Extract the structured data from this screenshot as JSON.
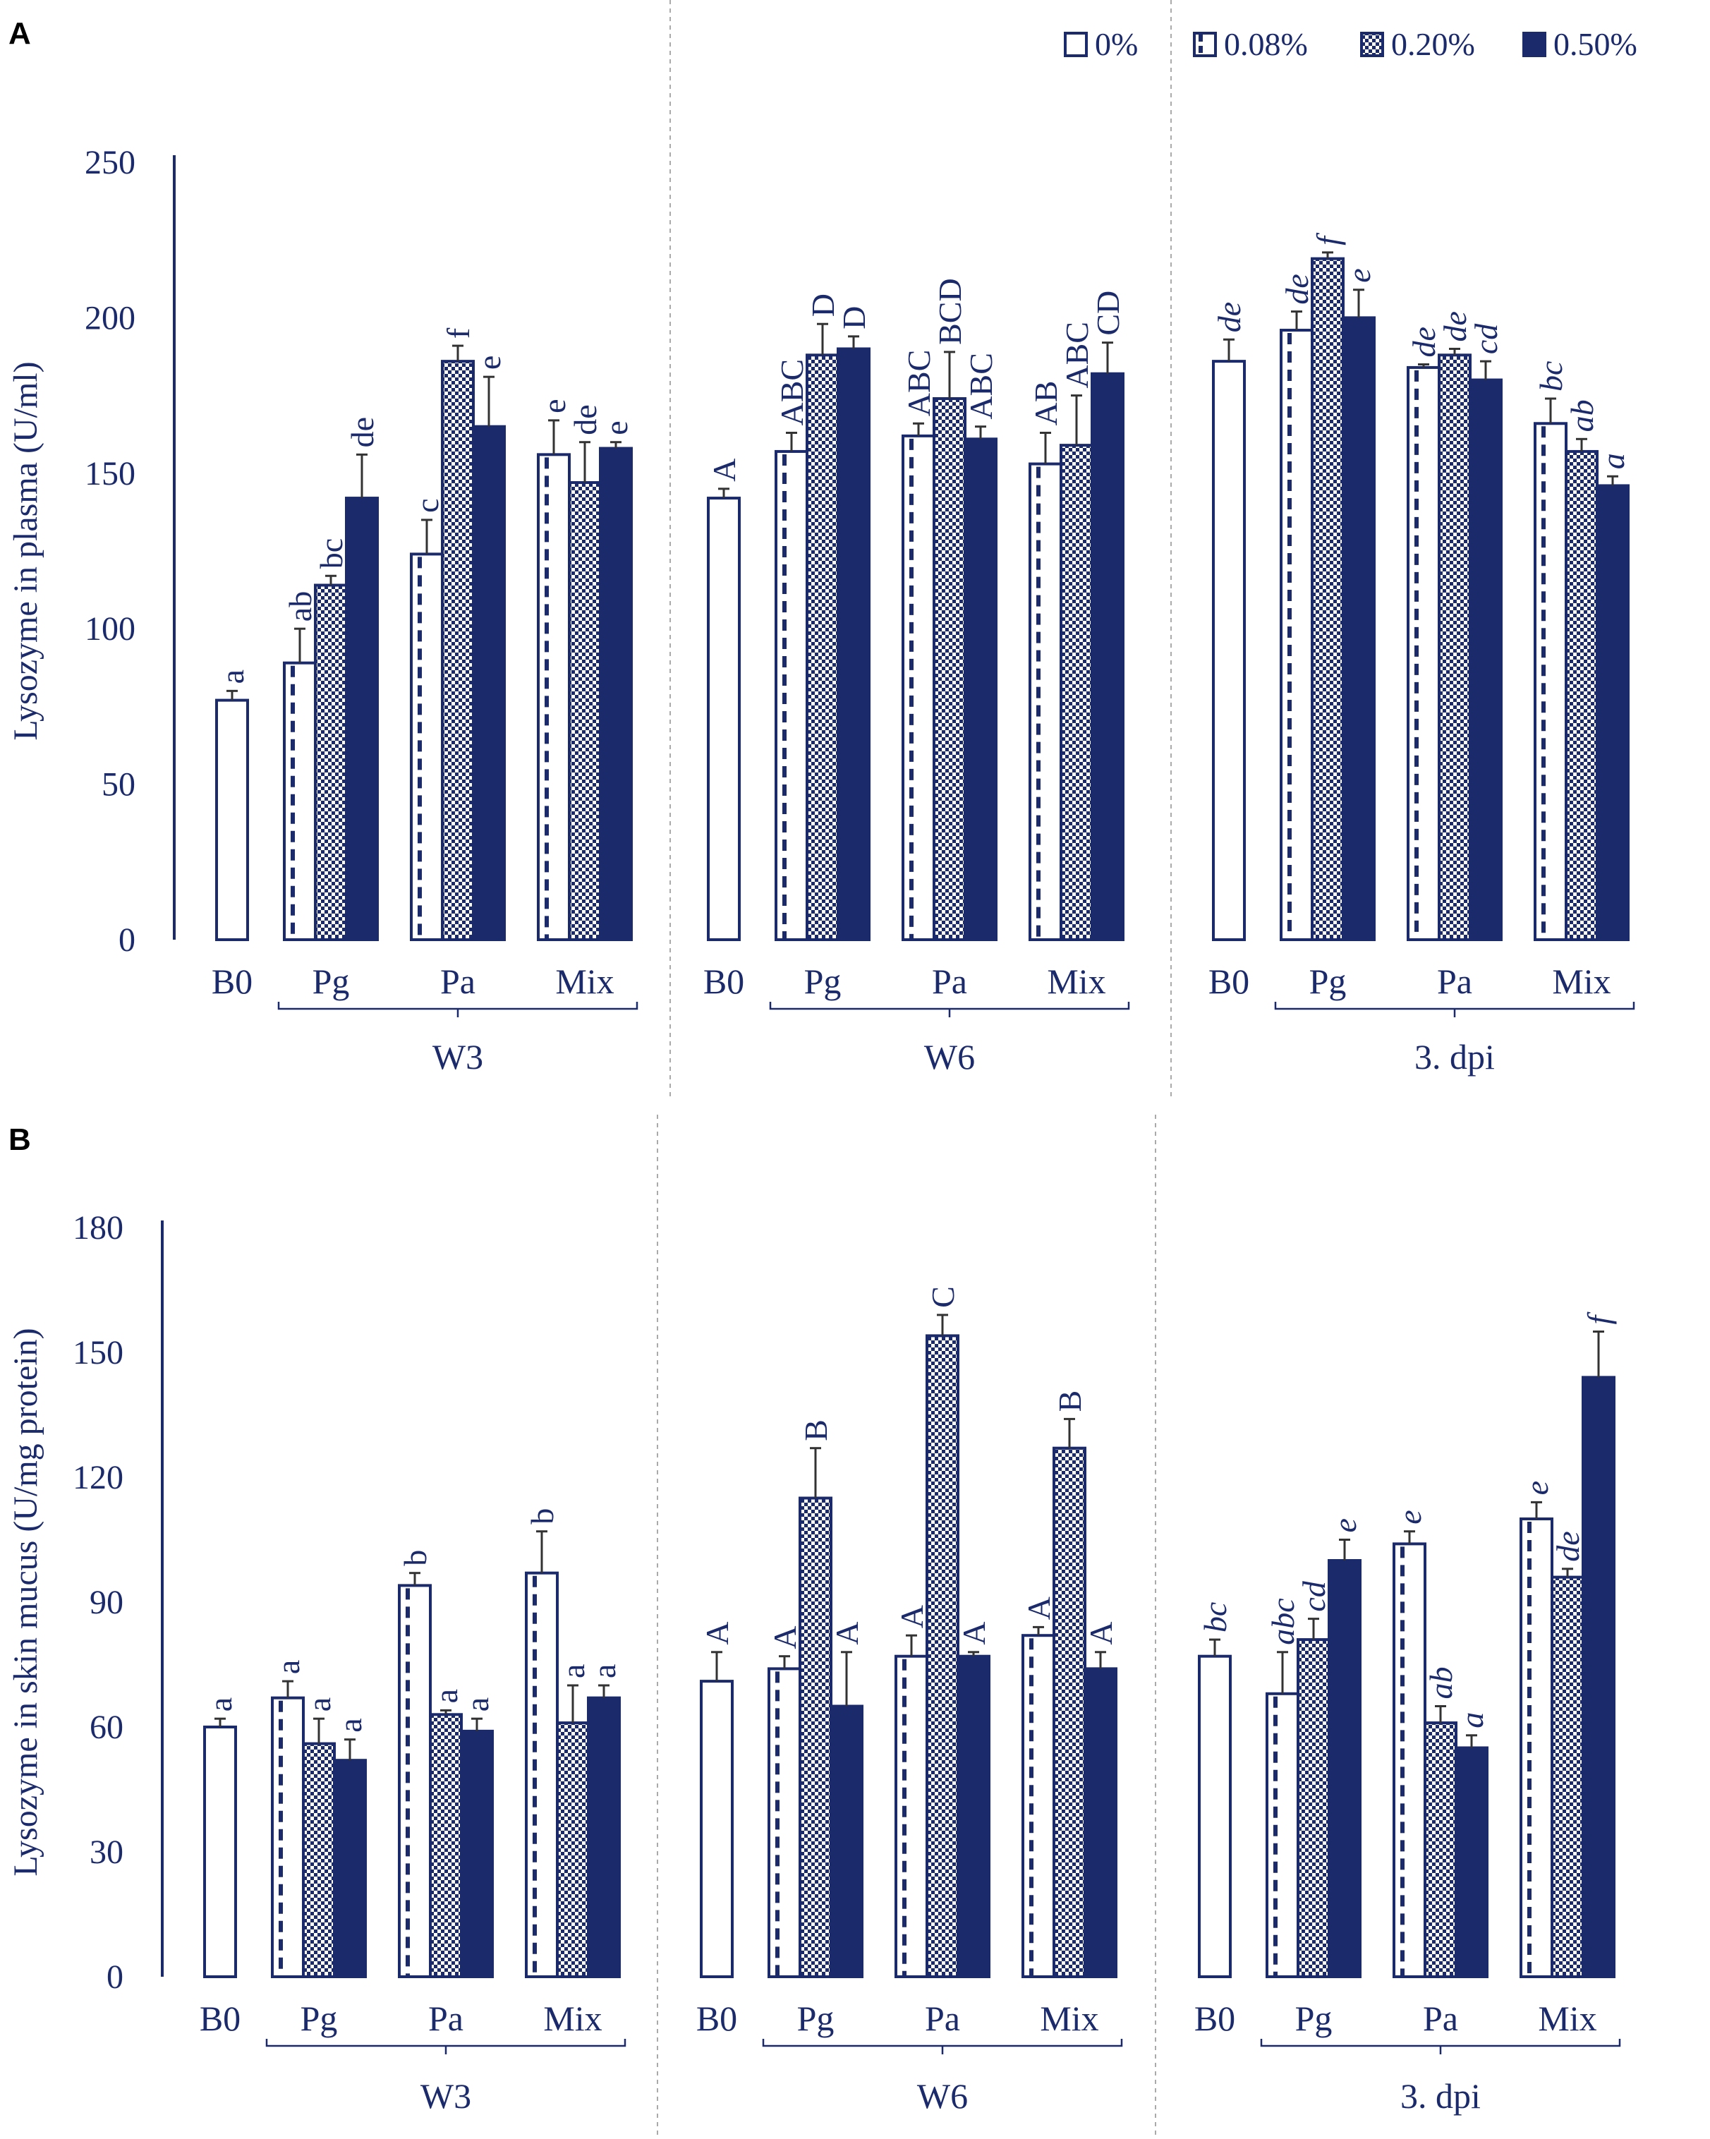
{
  "colors": {
    "navy": "#1b2a6b",
    "white": "#ffffff",
    "divider": "#aaaaaa"
  },
  "legend": {
    "items": [
      {
        "label": "0%",
        "pattern": "open"
      },
      {
        "label": "0.08%",
        "pattern": "dashed"
      },
      {
        "label": "0.20%",
        "pattern": "checker"
      },
      {
        "label": "0.50%",
        "pattern": "solid"
      }
    ]
  },
  "chart_data": [
    {
      "panel": "A",
      "type": "bar",
      "ylabel": "Lysozyme in plasma (U/ml)",
      "ylim": [
        0,
        250
      ],
      "yticks": [
        0,
        50,
        100,
        150,
        200,
        250
      ],
      "groups": [
        {
          "name": "W3",
          "italic": false,
          "baseline": {
            "label": "B0",
            "value": 77,
            "error": 3,
            "letter": "a"
          },
          "categories": [
            {
              "label": "Pg",
              "bars": [
                {
                  "level": "0.08%",
                  "value": 89,
                  "error": 11,
                  "letter": "ab"
                },
                {
                  "level": "0.20%",
                  "value": 114,
                  "error": 3,
                  "letter": "bc"
                },
                {
                  "level": "0.50%",
                  "value": 142,
                  "error": 14,
                  "letter": "de"
                }
              ]
            },
            {
              "label": "Pa",
              "bars": [
                {
                  "level": "0.08%",
                  "value": 124,
                  "error": 11,
                  "letter": "c"
                },
                {
                  "level": "0.20%",
                  "value": 186,
                  "error": 5,
                  "letter": "f"
                },
                {
                  "level": "0.50%",
                  "value": 165,
                  "error": 16,
                  "letter": "e"
                }
              ]
            },
            {
              "label": "Mix",
              "bars": [
                {
                  "level": "0.08%",
                  "value": 156,
                  "error": 11,
                  "letter": "e"
                },
                {
                  "level": "0.20%",
                  "value": 147,
                  "error": 13,
                  "letter": "de"
                },
                {
                  "level": "0.50%",
                  "value": 158,
                  "error": 2,
                  "letter": "e"
                }
              ]
            }
          ]
        },
        {
          "name": "W6",
          "italic": false,
          "baseline": {
            "label": "B0",
            "value": 142,
            "error": 3,
            "letter": "A"
          },
          "categories": [
            {
              "label": "Pg",
              "bars": [
                {
                  "level": "0.08%",
                  "value": 157,
                  "error": 6,
                  "letter": "ABC"
                },
                {
                  "level": "0.20%",
                  "value": 188,
                  "error": 10,
                  "letter": "D"
                },
                {
                  "level": "0.50%",
                  "value": 190,
                  "error": 4,
                  "letter": "D"
                }
              ]
            },
            {
              "label": "Pa",
              "bars": [
                {
                  "level": "0.08%",
                  "value": 162,
                  "error": 4,
                  "letter": "ABC"
                },
                {
                  "level": "0.20%",
                  "value": 174,
                  "error": 15,
                  "letter": "BCD"
                },
                {
                  "level": "0.50%",
                  "value": 161,
                  "error": 4,
                  "letter": "ABC"
                }
              ]
            },
            {
              "label": "Mix",
              "bars": [
                {
                  "level": "0.08%",
                  "value": 153,
                  "error": 10,
                  "letter": "AB"
                },
                {
                  "level": "0.20%",
                  "value": 159,
                  "error": 16,
                  "letter": "ABC"
                },
                {
                  "level": "0.50%",
                  "value": 182,
                  "error": 10,
                  "letter": "CD"
                }
              ]
            }
          ]
        },
        {
          "name": "3. dpi",
          "italic": true,
          "baseline": {
            "label": "B0",
            "value": 186,
            "error": 7,
            "letter": "de"
          },
          "categories": [
            {
              "label": "Pg",
              "bars": [
                {
                  "level": "0.08%",
                  "value": 196,
                  "error": 6,
                  "letter": "de"
                },
                {
                  "level": "0.20%",
                  "value": 219,
                  "error": 2,
                  "letter": "f"
                },
                {
                  "level": "0.50%",
                  "value": 200,
                  "error": 9,
                  "letter": "e"
                }
              ]
            },
            {
              "label": "Pa",
              "bars": [
                {
                  "level": "0.08%",
                  "value": 184,
                  "error": 1,
                  "letter": "de"
                },
                {
                  "level": "0.20%",
                  "value": 188,
                  "error": 2,
                  "letter": "de"
                },
                {
                  "level": "0.50%",
                  "value": 180,
                  "error": 6,
                  "letter": "cd"
                }
              ]
            },
            {
              "label": "Mix",
              "bars": [
                {
                  "level": "0.08%",
                  "value": 166,
                  "error": 8,
                  "letter": "bc"
                },
                {
                  "level": "0.20%",
                  "value": 157,
                  "error": 4,
                  "letter": "ab"
                },
                {
                  "level": "0.50%",
                  "value": 146,
                  "error": 3,
                  "letter": "a"
                }
              ]
            }
          ]
        }
      ]
    },
    {
      "panel": "B",
      "type": "bar",
      "ylabel": "Lysozyme in skin mucus (U/mg protein)",
      "ylim": [
        0,
        180
      ],
      "yticks": [
        0,
        30,
        60,
        90,
        120,
        150,
        180
      ],
      "groups": [
        {
          "name": "W3",
          "italic": false,
          "baseline": {
            "label": "B0",
            "value": 60,
            "error": 2,
            "letter": "a"
          },
          "categories": [
            {
              "label": "Pg",
              "bars": [
                {
                  "level": "0.08%",
                  "value": 67,
                  "error": 4,
                  "letter": "a"
                },
                {
                  "level": "0.20%",
                  "value": 56,
                  "error": 6,
                  "letter": "a"
                },
                {
                  "level": "0.50%",
                  "value": 52,
                  "error": 5,
                  "letter": "a"
                }
              ]
            },
            {
              "label": "Pa",
              "bars": [
                {
                  "level": "0.08%",
                  "value": 94,
                  "error": 3,
                  "letter": "b"
                },
                {
                  "level": "0.20%",
                  "value": 63,
                  "error": 1,
                  "letter": "a"
                },
                {
                  "level": "0.50%",
                  "value": 59,
                  "error": 3,
                  "letter": "a"
                }
              ]
            },
            {
              "label": "Mix",
              "bars": [
                {
                  "level": "0.08%",
                  "value": 97,
                  "error": 10,
                  "letter": "b"
                },
                {
                  "level": "0.20%",
                  "value": 61,
                  "error": 9,
                  "letter": "a"
                },
                {
                  "level": "0.50%",
                  "value": 67,
                  "error": 3,
                  "letter": "a"
                }
              ]
            }
          ]
        },
        {
          "name": "W6",
          "italic": false,
          "baseline": {
            "label": "B0",
            "value": 71,
            "error": 7,
            "letter": "A"
          },
          "categories": [
            {
              "label": "Pg",
              "bars": [
                {
                  "level": "0.08%",
                  "value": 74,
                  "error": 3,
                  "letter": "A"
                },
                {
                  "level": "0.20%",
                  "value": 115,
                  "error": 12,
                  "letter": "B"
                },
                {
                  "level": "0.50%",
                  "value": 65,
                  "error": 13,
                  "letter": "A"
                }
              ]
            },
            {
              "label": "Pa",
              "bars": [
                {
                  "level": "0.08%",
                  "value": 77,
                  "error": 5,
                  "letter": "A"
                },
                {
                  "level": "0.20%",
                  "value": 154,
                  "error": 5,
                  "letter": "C"
                },
                {
                  "level": "0.50%",
                  "value": 77,
                  "error": 1,
                  "letter": "A"
                }
              ]
            },
            {
              "label": "Mix",
              "bars": [
                {
                  "level": "0.08%",
                  "value": 82,
                  "error": 2,
                  "letter": "A"
                },
                {
                  "level": "0.20%",
                  "value": 127,
                  "error": 7,
                  "letter": "B"
                },
                {
                  "level": "0.50%",
                  "value": 74,
                  "error": 4,
                  "letter": "A"
                }
              ]
            }
          ]
        },
        {
          "name": "3. dpi",
          "italic": true,
          "baseline": {
            "label": "B0",
            "value": 77,
            "error": 4,
            "letter": "bc"
          },
          "categories": [
            {
              "label": "Pg",
              "bars": [
                {
                  "level": "0.08%",
                  "value": 68,
                  "error": 10,
                  "letter": "abc"
                },
                {
                  "level": "0.20%",
                  "value": 81,
                  "error": 5,
                  "letter": "cd"
                },
                {
                  "level": "0.50%",
                  "value": 100,
                  "error": 5,
                  "letter": "e"
                }
              ]
            },
            {
              "label": "Pa",
              "bars": [
                {
                  "level": "0.08%",
                  "value": 104,
                  "error": 3,
                  "letter": "e"
                },
                {
                  "level": "0.20%",
                  "value": 61,
                  "error": 4,
                  "letter": "ab"
                },
                {
                  "level": "0.50%",
                  "value": 55,
                  "error": 3,
                  "letter": "a"
                }
              ]
            },
            {
              "label": "Mix",
              "bars": [
                {
                  "level": "0.08%",
                  "value": 110,
                  "error": 4,
                  "letter": "e"
                },
                {
                  "level": "0.20%",
                  "value": 96,
                  "error": 2,
                  "letter": "de"
                },
                {
                  "level": "0.50%",
                  "value": 144,
                  "error": 11,
                  "letter": "f"
                }
              ]
            }
          ]
        }
      ]
    }
  ]
}
